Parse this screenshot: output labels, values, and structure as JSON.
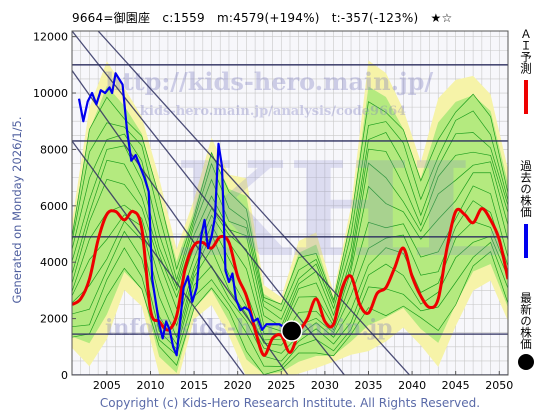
{
  "header": {
    "title": "9664=御園座　c:1559　m:4579(+194%)　t:-357(-123%)　★☆"
  },
  "side_note": "Generated on Monday 2026/1/5.",
  "footer": {
    "copyright": "Copyright (c) Kids-Hero Research Institute. All Rights Reserved."
  },
  "watermarks": {
    "url": "http://kids-hero.main.jp/",
    "analysis_url": "kids-hero.main.jp/analysis/code9664",
    "email": "info@kids-hero.main.jp",
    "logo": "KHL"
  },
  "legend": [
    {
      "label": "ＡＩ予測",
      "color": "#ee0000",
      "marker": "line"
    },
    {
      "label": "過去の株価",
      "color": "#0000ee",
      "marker": "line"
    },
    {
      "label": "最新の株価",
      "color": "#000000",
      "marker": "dot"
    }
  ],
  "colors": {
    "ai_line": "#ee0000",
    "past_line": "#0000ee",
    "latest_dot": "#000000",
    "band_green": "#a8e878",
    "band_yellow": "#f6f3a8",
    "band_lines": "#1e9e1e",
    "trend_lines": "#2e3060",
    "grid": "#c8c8c8"
  },
  "chart_data": {
    "type": "line",
    "xlim": [
      2001,
      2051
    ],
    "ylim": [
      0,
      12200
    ],
    "x_ticks": [
      2005,
      2010,
      2015,
      2020,
      2025,
      2030,
      2035,
      2040,
      2045,
      2050
    ],
    "y_ticks": [
      0,
      2000,
      4000,
      6000,
      8000,
      10000,
      12000
    ],
    "grid": true,
    "horizontal_levels": [
      11000,
      8300,
      4900,
      1450,
      0
    ],
    "trend_lines": [
      {
        "from": [
          2001,
          10800
        ],
        "to": [
          2026,
          -100
        ]
      },
      {
        "from": [
          2001,
          12200
        ],
        "to": [
          2032.5,
          -100
        ]
      },
      {
        "from": [
          2004,
          12200
        ],
        "to": [
          2040,
          -100
        ]
      },
      {
        "from": [
          2001,
          8300
        ],
        "to": [
          2021,
          -100
        ]
      }
    ],
    "ai_forecast": {
      "name": "ＡＩ予測",
      "x": [
        2001,
        2002,
        2003,
        2004,
        2005,
        2006,
        2007,
        2008,
        2009,
        2010,
        2011,
        2012,
        2013,
        2014,
        2015,
        2016,
        2017,
        2018,
        2019,
        2020,
        2021,
        2022,
        2023,
        2024,
        2025,
        2026,
        2027,
        2028,
        2029,
        2030,
        2031,
        2032,
        2033,
        2034,
        2035,
        2036,
        2037,
        2038,
        2039,
        2040,
        2041,
        2042,
        2043,
        2044,
        2045,
        2046,
        2047,
        2048,
        2049,
        2050,
        2051
      ],
      "y": [
        2500,
        2700,
        3400,
        4800,
        5700,
        5800,
        5500,
        5800,
        5200,
        2300,
        1900,
        1600,
        2100,
        3800,
        4600,
        4700,
        4500,
        4900,
        4700,
        3500,
        2800,
        1600,
        700,
        1300,
        1400,
        800,
        1500,
        2000,
        2700,
        1900,
        1800,
        3100,
        3500,
        2500,
        2200,
        2900,
        3100,
        3800,
        4500,
        3500,
        2800,
        2400,
        2700,
        4500,
        5800,
        5700,
        5400,
        5900,
        5500,
        4800,
        3400
      ]
    },
    "past_price": {
      "name": "過去の株価",
      "x": [
        2001.8,
        2002.3,
        2002.8,
        2003.3,
        2003.8,
        2004.3,
        2004.8,
        2005.3,
        2005.6,
        2006.0,
        2006.4,
        2006.8,
        2007.3,
        2007.8,
        2008.3,
        2008.8,
        2009.3,
        2009.8,
        2010.2,
        2010.6,
        2011.0,
        2011.4,
        2011.8,
        2012.2,
        2012.6,
        2013.0,
        2013.4,
        2013.8,
        2014.3,
        2014.8,
        2015.3,
        2015.8,
        2016.2,
        2016.6,
        2017.0,
        2017.4,
        2017.8,
        2018.2,
        2018.6,
        2019.0,
        2019.4,
        2019.8,
        2020.3,
        2020.8,
        2021.3,
        2021.8,
        2022.3,
        2022.8,
        2023.3,
        2023.8,
        2024.3,
        2024.8,
        2025.3
      ],
      "y": [
        9800,
        9000,
        9700,
        10000,
        9600,
        10100,
        10000,
        10200,
        10000,
        10700,
        10500,
        10300,
        8700,
        7600,
        7800,
        7400,
        7000,
        6500,
        3400,
        2600,
        1800,
        1300,
        1900,
        1600,
        1000,
        700,
        1900,
        3100,
        3500,
        2600,
        3100,
        4900,
        5500,
        4500,
        4900,
        5600,
        8200,
        7400,
        3700,
        3300,
        3600,
        2700,
        2300,
        2400,
        2300,
        1900,
        2000,
        1600,
        1800,
        1800,
        1800,
        1800,
        1700
      ]
    },
    "latest_price": {
      "name": "最新の株価",
      "x": 2026.2,
      "y": 1559
    },
    "forecast_band": {
      "x": [
        2001,
        2003,
        2005,
        2007,
        2009,
        2011,
        2013,
        2015,
        2017,
        2019,
        2021,
        2023,
        2025,
        2027,
        2029,
        2031,
        2033,
        2035,
        2037,
        2039,
        2041,
        2043,
        2045,
        2047,
        2049,
        2051
      ],
      "upper": [
        5200,
        9000,
        10600,
        9800,
        8800,
        6600,
        4200,
        6000,
        8100,
        6800,
        6600,
        3000,
        2600,
        4500,
        4800,
        2800,
        5700,
        10600,
        10200,
        9000,
        7200,
        9300,
        10000,
        10200,
        9600,
        7000
      ],
      "lower": [
        1200,
        800,
        1800,
        3400,
        2800,
        400,
        -100,
        2200,
        2800,
        1700,
        300,
        -100,
        0,
        300,
        500,
        600,
        1000,
        1400,
        1700,
        2100,
        1400,
        800,
        2200,
        3400,
        3700,
        2200
      ]
    }
  }
}
